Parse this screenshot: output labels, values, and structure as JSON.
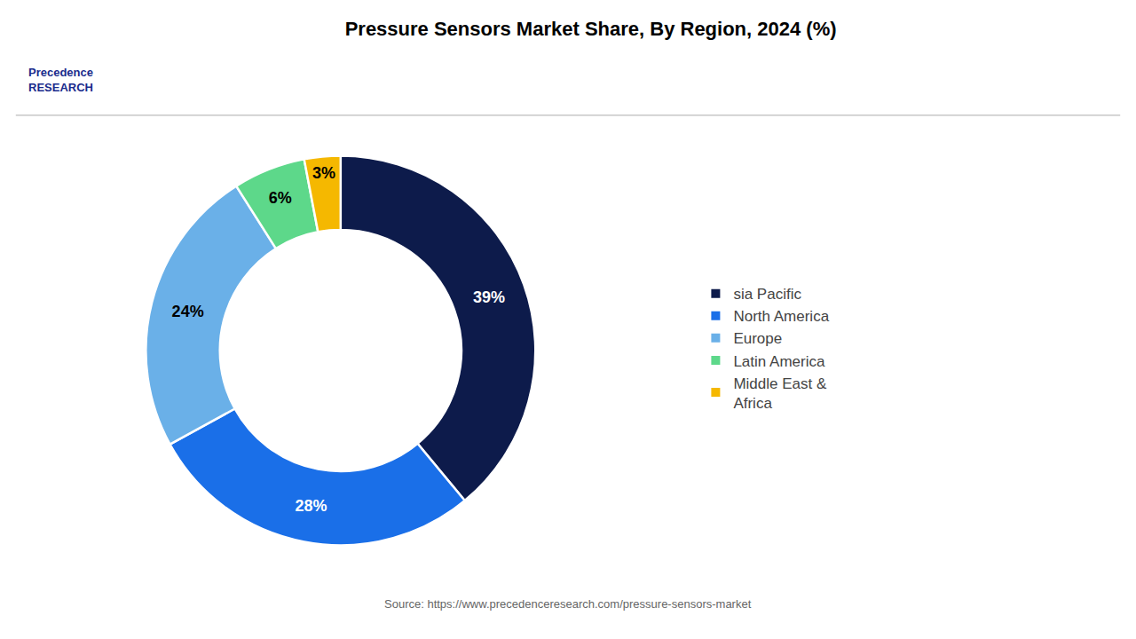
{
  "chart_data": {
    "type": "donut",
    "title": "Pressure Sensors Market Share, By Region, 2024 (%)",
    "categories": [
      "sia Pacific",
      "North America",
      "Europe",
      "Latin America",
      "Middle East &\nAfrica"
    ],
    "values": [
      39,
      28,
      24,
      6,
      3
    ],
    "value_labels": [
      "39%",
      "28%",
      "24%",
      "6%",
      "3%"
    ],
    "data_labels": true,
    "colors": [
      "#0d1b4b",
      "#1a6fe8",
      "#6ab0e8",
      "#5dd88a",
      "#f5b800"
    ],
    "legend": "right",
    "annotations": [
      "Precedence\nRESEARCH",
      "Source: https://www.precedenceresearch.com/pressure-sensors-market"
    ]
  }
}
